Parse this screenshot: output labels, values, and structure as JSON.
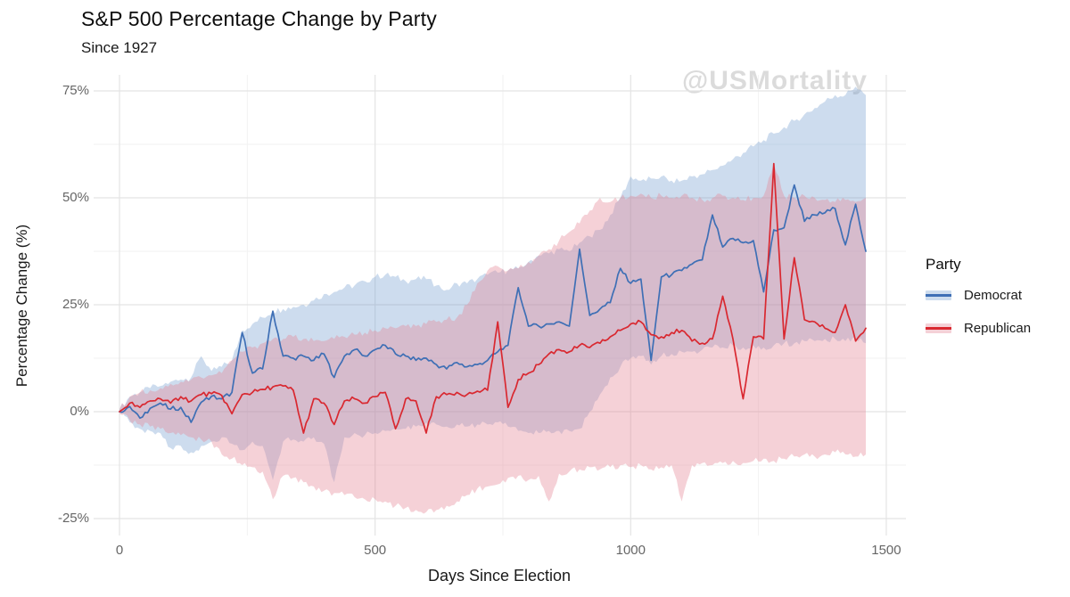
{
  "watermark": "@USMortality",
  "chart_data": {
    "type": "line",
    "title": "S&P 500 Percentage Change by Party",
    "subtitle": "Since 1927",
    "xlabel": "Days Since Election",
    "ylabel": "Percentage Change (%)",
    "legend_title": "Party",
    "legend_position": "right",
    "grid": "on",
    "xlim": [
      0,
      1500
    ],
    "ylim": [
      -25,
      75
    ],
    "x_ticks": {
      "values": [
        0,
        500,
        1000,
        1500
      ],
      "labels": [
        "0",
        "500",
        "1000",
        "1500"
      ]
    },
    "x_minor_ticks": [
      250,
      750,
      1250
    ],
    "y_ticks": {
      "values": [
        -25,
        0,
        25,
        50,
        75
      ],
      "labels": [
        "-25%",
        "0%",
        "25%",
        "50%",
        "75%"
      ]
    },
    "y_minor_ticks": [
      -12.5,
      12.5,
      37.5,
      62.5
    ],
    "colors": {
      "background": "#FFFFFF",
      "grid_major": "#E4E4E4",
      "grid_minor": "#F2F2F2",
      "watermark": "#A0A0A0",
      "democrat_line": "#3E6FB5",
      "republican_line": "#D92830",
      "democrat_band": "rgba(111,154,206,0.35)",
      "republican_band": "rgba(229,134,149,0.38)"
    },
    "x": [
      0,
      20,
      40,
      60,
      80,
      100,
      120,
      140,
      160,
      180,
      200,
      220,
      240,
      260,
      280,
      300,
      320,
      340,
      360,
      380,
      400,
      420,
      440,
      460,
      480,
      500,
      520,
      540,
      560,
      580,
      600,
      620,
      640,
      660,
      680,
      700,
      720,
      740,
      760,
      780,
      800,
      820,
      840,
      860,
      880,
      900,
      920,
      940,
      960,
      980,
      1000,
      1020,
      1040,
      1060,
      1080,
      1100,
      1120,
      1140,
      1160,
      1180,
      1200,
      1220,
      1240,
      1260,
      1280,
      1300,
      1320,
      1340,
      1360,
      1380,
      1400,
      1420,
      1440,
      1460
    ],
    "series": [
      {
        "name": "Democrat",
        "color": "#3E6FB5",
        "band_color": "rgba(111,154,206,0.35)",
        "values": [
          0,
          1.2,
          -1.5,
          0.8,
          2,
          0.6,
          1,
          -2.5,
          2.2,
          3.6,
          3,
          4.5,
          18.5,
          9,
          10,
          23.5,
          13,
          12.5,
          13,
          12,
          13.5,
          8,
          13,
          14.5,
          13,
          14.5,
          15.5,
          13.5,
          13,
          12,
          12.5,
          11,
          10,
          11.5,
          10.5,
          11,
          12,
          14,
          15.5,
          29,
          20,
          20,
          20.5,
          21,
          20,
          38,
          22.5,
          24,
          25.5,
          33.5,
          30,
          31,
          12,
          31.5,
          32,
          33,
          34.5,
          35.5,
          46,
          38.5,
          40.5,
          39.5,
          40,
          28,
          42.5,
          43,
          53,
          44.5,
          46,
          46.5,
          47.5,
          39,
          48.5,
          37.5
        ],
        "lower": [
          0,
          -2.5,
          -4,
          -4.5,
          -5,
          -8.5,
          -8,
          -9.5,
          -8,
          -7,
          -6,
          -7.5,
          -9,
          -7,
          -8,
          -16,
          -7,
          -6.5,
          -7,
          -6,
          -7.5,
          -16.5,
          -6,
          -5,
          -5.5,
          -5,
          -4.5,
          -4,
          -4,
          -3.5,
          -2.5,
          -3,
          -3.5,
          -3,
          -3.5,
          -3,
          -3,
          -2.5,
          -3.5,
          -4.5,
          -5,
          -5,
          -4.5,
          -4.5,
          -4.5,
          -4,
          0,
          4,
          8,
          10.5,
          12.5,
          13,
          11,
          13,
          13.5,
          14,
          14,
          14.5,
          15,
          15,
          15.5,
          15,
          15.5,
          15,
          15.5,
          16,
          16,
          16.5,
          16.5,
          17,
          17,
          16.5,
          17,
          16
        ],
        "upper": [
          0.5,
          3.5,
          4.5,
          5.5,
          6,
          7,
          7.5,
          8,
          13,
          9.5,
          10.5,
          12,
          19,
          20.5,
          22,
          23.5,
          24,
          24.5,
          25,
          26,
          27.5,
          28,
          29,
          29.5,
          30.5,
          31.5,
          32,
          31.5,
          30.5,
          31,
          31,
          29.5,
          28.5,
          30,
          30,
          31,
          32,
          32.5,
          33,
          33.5,
          35,
          36.5,
          37,
          38,
          37.5,
          39.5,
          41,
          42.5,
          46,
          50,
          55,
          54,
          54.5,
          55,
          54,
          54,
          55,
          55.5,
          56.5,
          57.5,
          59,
          60.5,
          62,
          63.5,
          65,
          66.5,
          68,
          69.5,
          71,
          72.5,
          74,
          74,
          76,
          74
        ]
      },
      {
        "name": "Republican",
        "color": "#D92830",
        "band_color": "rgba(229,134,149,0.38)",
        "values": [
          0,
          2,
          1,
          2.5,
          3,
          2,
          3.5,
          2.5,
          4,
          4.2,
          3.8,
          -0.5,
          4,
          4.5,
          5.2,
          5.8,
          6,
          5,
          -5,
          3,
          2,
          -3,
          2.5,
          3,
          2,
          3.5,
          4.5,
          -4,
          3,
          2.5,
          -5,
          3.5,
          4,
          4.5,
          4,
          4.8,
          5,
          21,
          1,
          7.5,
          9,
          11,
          13.5,
          14.5,
          14,
          15.5,
          15,
          16,
          17.5,
          19,
          20.5,
          21,
          18,
          17.5,
          18.5,
          19,
          16.5,
          16,
          17,
          27,
          17,
          3,
          17.5,
          17,
          58,
          17,
          36,
          21.5,
          21,
          19.5,
          18.5,
          25,
          16.5,
          19.5
        ],
        "lower": [
          -0.5,
          -2,
          -3,
          -3.5,
          -4,
          -5,
          -5.5,
          -6,
          -6.5,
          -7,
          -10,
          -11,
          -12.5,
          -13,
          -14,
          -20.5,
          -15,
          -15.5,
          -16.5,
          -17.5,
          -18.5,
          -19,
          -19.5,
          -20,
          -20.5,
          -20.5,
          -21,
          -22,
          -22.5,
          -23,
          -23.5,
          -23,
          -22,
          -21,
          -19.5,
          -18,
          -17.5,
          -17,
          -15.5,
          -15,
          -16,
          -15,
          -21,
          -14.5,
          -14,
          -13.5,
          -13,
          -13.5,
          -13,
          -12.5,
          -13,
          -12.5,
          -13.5,
          -13,
          -12.5,
          -21,
          -12.5,
          -12,
          -12.5,
          -12,
          -11.5,
          -12,
          -11.5,
          -11,
          -11.5,
          -11,
          -10.5,
          -10,
          -10.5,
          -10,
          -9.5,
          -10,
          -10.5,
          -10
        ],
        "upper": [
          0.5,
          3.5,
          4.5,
          5,
          5.5,
          6.5,
          7,
          7.5,
          8,
          8.5,
          9,
          12,
          14,
          15,
          16,
          17,
          17,
          17.5,
          17,
          16.5,
          16.5,
          17,
          17.5,
          18,
          18.5,
          19,
          19.5,
          19.5,
          20,
          20,
          20.5,
          21,
          21.5,
          22,
          25,
          30,
          33,
          34,
          33,
          33.5,
          35,
          36.5,
          38,
          40,
          42,
          44,
          47,
          50,
          49,
          50,
          50.5,
          51,
          50,
          50.5,
          50,
          50.5,
          50,
          49.5,
          50,
          50.5,
          50,
          49.5,
          50,
          50.5,
          58,
          50.5,
          50,
          50.5,
          50,
          49.5,
          49,
          49.5,
          49,
          50
        ]
      }
    ]
  }
}
